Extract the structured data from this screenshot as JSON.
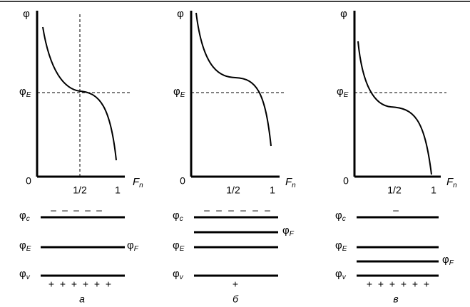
{
  "panels": [
    {
      "caption": "а",
      "y_axis": {
        "symbol": "φ"
      },
      "reference": {
        "symbol": "φ",
        "sub": "E"
      },
      "origin": "0",
      "x_ticks": [
        "1/2",
        "1"
      ],
      "x_axis": {
        "symbol": "F",
        "sub": "n"
      },
      "levels": {
        "conduction": {
          "symbol": "φ",
          "sub": "c"
        },
        "intrinsic": {
          "symbol": "φ",
          "sub": "E"
        },
        "valence": {
          "symbol": "φ",
          "sub": "v"
        }
      },
      "fermi": {
        "symbol": "φ",
        "sub": "F"
      },
      "minus": [
        "–",
        "–",
        "–",
        "–",
        "–"
      ],
      "plus": [
        "+",
        "+",
        "+",
        "+",
        "+",
        "+"
      ]
    },
    {
      "caption": "б",
      "y_axis": {
        "symbol": "φ"
      },
      "reference": {
        "symbol": "φ",
        "sub": "E"
      },
      "origin": "0",
      "x_ticks": [
        "1/2",
        "1"
      ],
      "x_axis": {
        "symbol": "F",
        "sub": "n"
      },
      "levels": {
        "conduction": {
          "symbol": "φ",
          "sub": "c"
        },
        "intrinsic": {
          "symbol": "φ",
          "sub": "E"
        },
        "valence": {
          "symbol": "φ",
          "sub": "v"
        }
      },
      "fermi": {
        "symbol": "φ",
        "sub": "F"
      },
      "minus": [
        "–",
        "–",
        "–",
        "–",
        "–",
        "–"
      ],
      "plus": [
        "+"
      ]
    },
    {
      "caption": "в",
      "y_axis": {
        "symbol": "φ"
      },
      "reference": {
        "symbol": "φ",
        "sub": "E"
      },
      "origin": "0",
      "x_ticks": [
        "1/2",
        "1"
      ],
      "x_axis": {
        "symbol": "F",
        "sub": "n"
      },
      "levels": {
        "conduction": {
          "symbol": "φ",
          "sub": "c"
        },
        "intrinsic": {
          "symbol": "φ",
          "sub": "E"
        },
        "valence": {
          "symbol": "φ",
          "sub": "v"
        }
      },
      "fermi": {
        "symbol": "φ",
        "sub": "F"
      },
      "minus": [
        "–"
      ],
      "plus": [
        "+",
        "+",
        "+",
        "+",
        "+",
        "+"
      ]
    }
  ]
}
